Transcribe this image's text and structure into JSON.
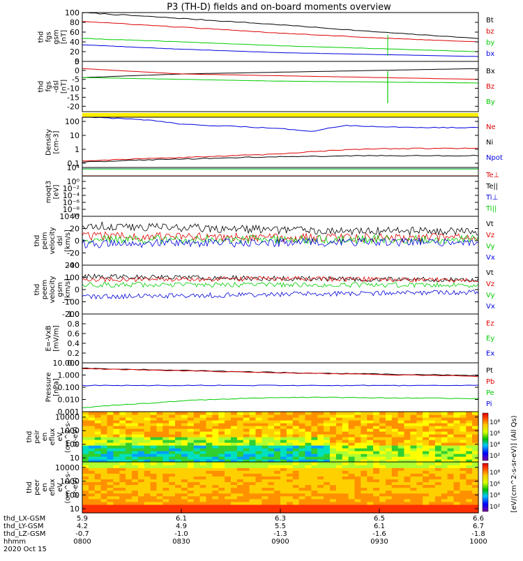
{
  "title": "P3 (TH-D) fields and on-board moments overview",
  "chart_data": {
    "type": "line",
    "title": "P3 (TH-D) fields and on-board moments overview",
    "time_range": [
      "0800",
      "1000"
    ],
    "panels": [
      {
        "id": "fgs_gsm",
        "ylabel": [
          "thd",
          "fgs",
          "gsm",
          "[nT]"
        ],
        "ylim": [
          0,
          100
        ],
        "yticks": [
          "100",
          "80",
          "60",
          "40",
          "20",
          "0"
        ],
        "tick_values": [
          100,
          80,
          60,
          40,
          20,
          0
        ],
        "scale": "linear",
        "legend": [
          {
            "name": "Bt",
            "color": "#000000"
          },
          {
            "name": "bz",
            "color": "#dd0000"
          },
          {
            "name": "by",
            "color": "#00cc00"
          },
          {
            "name": "bx",
            "color": "#0000dd"
          }
        ],
        "series": [
          {
            "name": "Bt",
            "color": "#000000",
            "x": [
              0,
              30,
              60,
              90,
              120
            ],
            "values": [
              100,
              88,
              75,
              60,
              47
            ]
          },
          {
            "name": "bz",
            "color": "#dd0000",
            "x": [
              0,
              30,
              60,
              90,
              120
            ],
            "values": [
              82,
              70,
              58,
              48,
              40
            ]
          },
          {
            "name": "by",
            "color": "#00cc00",
            "x": [
              0,
              30,
              60,
              90,
              120
            ],
            "values": [
              47,
              40,
              32,
              26,
              20
            ]
          },
          {
            "name": "bx",
            "color": "#0000dd",
            "x": [
              0,
              30,
              60,
              90,
              120
            ],
            "values": [
              34,
              25,
              18,
              14,
              10
            ]
          }
        ]
      },
      {
        "id": "fgs_dsl",
        "ylabel": [
          "thd",
          "fgs",
          "-dsl",
          "[nT]"
        ],
        "ylim": [
          -23,
          5
        ],
        "yticks": [
          "5",
          "0",
          "-5",
          "-10",
          "-15",
          "-20"
        ],
        "tick_values": [
          5,
          0,
          -5,
          -10,
          -15,
          -20
        ],
        "scale": "linear",
        "legend": [
          {
            "name": "Bx",
            "color": "#000000"
          },
          {
            "name": "Bz",
            "color": "#dd0000"
          },
          {
            "name": "By",
            "color": "#00cc00"
          }
        ],
        "series": [
          {
            "name": "Bx",
            "color": "#000000",
            "x": [
              0,
              30,
              60,
              90,
              120
            ],
            "values": [
              -4,
              -2,
              -1,
              0,
              1
            ]
          },
          {
            "name": "Bz",
            "color": "#dd0000",
            "x": [
              0,
              30,
              60,
              90,
              120
            ],
            "values": [
              1,
              -2,
              -3,
              -4,
              -5
            ]
          },
          {
            "name": "By",
            "color": "#00cc00",
            "x": [
              0,
              30,
              60,
              90,
              120
            ],
            "values": [
              -4,
              -5,
              -6,
              -6.5,
              -7
            ]
          }
        ]
      },
      {
        "id": "flag_bar",
        "ylabel": [],
        "legend": []
      },
      {
        "id": "density",
        "ylabel": [
          "Density",
          "[cm-3]"
        ],
        "ylim": [
          0.05,
          200
        ],
        "yticks": [
          "100",
          "10",
          "1",
          "0.1"
        ],
        "tick_values": [
          100,
          10,
          1,
          0.1
        ],
        "scale": "log",
        "legend": [
          {
            "name": "Ne",
            "color": "#dd0000"
          },
          {
            "name": "Ni",
            "color": "#000000"
          },
          {
            "name": "Npot",
            "color": "#0000dd"
          }
        ],
        "series": [
          {
            "name": "Npot",
            "color": "#0000dd",
            "x": [
              0,
              15,
              30,
              50,
              70,
              80,
              90,
              120
            ],
            "values": [
              200,
              150,
              60,
              40,
              20,
              50,
              40,
              35
            ]
          },
          {
            "name": "Ne",
            "color": "#dd0000",
            "x": [
              0,
              30,
              60,
              75,
              90,
              120
            ],
            "values": [
              0.15,
              0.25,
              0.45,
              0.8,
              1.1,
              1.2
            ]
          },
          {
            "name": "Ni",
            "color": "#000000",
            "x": [
              0,
              30,
              60,
              90,
              120
            ],
            "values": [
              0.12,
              0.2,
              0.3,
              0.35,
              0.35
            ]
          }
        ]
      },
      {
        "id": "moqt3",
        "ylabel": [
          "moqt3",
          "[eV]"
        ],
        "ylim": [
          1e-10,
          10000
        ],
        "yticks": [
          "10⁴",
          "10⁰",
          "10⁻²",
          "10⁻⁴",
          "10⁻⁶",
          "10⁻⁸",
          "10⁻¹⁰"
        ],
        "tick_values": [
          10000,
          1,
          0.01,
          0.0001,
          1e-06,
          1e-08,
          1e-10
        ],
        "scale": "log",
        "legend": [
          {
            "name": "Te⊥",
            "color": "#dd0000"
          },
          {
            "name": "Te||",
            "color": "#000000"
          },
          {
            "name": "Ti⊥",
            "color": "#0000dd"
          },
          {
            "name": "Ti||",
            "color": "#00cc00"
          }
        ],
        "series": [
          {
            "name": "Te⊥",
            "color": "#dd0000",
            "x": [
              0,
              120
            ],
            "values": [
              40,
              40
            ]
          },
          {
            "name": "Te||",
            "color": "#000000",
            "x": [
              0,
              120
            ],
            "values": [
              35,
              35
            ]
          },
          {
            "name": "Ti⊥",
            "color": "#0000dd",
            "x": [
              0,
              120
            ],
            "values": [
              4000,
              4000
            ]
          },
          {
            "name": "Ti||",
            "color": "#00cc00",
            "x": [
              0,
              120
            ],
            "values": [
              3500,
              3500
            ]
          }
        ]
      },
      {
        "id": "peim_velocity",
        "ylabel": [
          "thd",
          "peim",
          "velocity",
          "dsl",
          "[km/s]"
        ],
        "ylim": [
          -40,
          40
        ],
        "yticks": [
          "40",
          "20",
          "0",
          "-20",
          "-40"
        ],
        "tick_values": [
          40,
          20,
          0,
          -20,
          -40
        ],
        "scale": "linear",
        "legend": [
          {
            "name": "Vt",
            "color": "#000000"
          },
          {
            "name": "Vz",
            "color": "#dd0000"
          },
          {
            "name": "Vy",
            "color": "#00cc00"
          },
          {
            "name": "Vx",
            "color": "#0000dd"
          }
        ],
        "series": [
          {
            "name": "Vt",
            "color": "#000000",
            "x": [
              0,
              60,
              120
            ],
            "values": [
              25,
              18,
              15
            ]
          },
          {
            "name": "Vz",
            "color": "#dd0000",
            "x": [
              0,
              60,
              120
            ],
            "values": [
              8,
              5,
              5
            ]
          },
          {
            "name": "Vy",
            "color": "#00cc00",
            "x": [
              0,
              60,
              120
            ],
            "values": [
              2,
              2,
              2
            ]
          },
          {
            "name": "Vx",
            "color": "#0000dd",
            "x": [
              0,
              60,
              120
            ],
            "values": [
              -5,
              -3,
              -2
            ]
          }
        ]
      },
      {
        "id": "peem_velocity",
        "ylabel": [
          "thd",
          "peem",
          "velocity",
          "gsm",
          "[km/s]"
        ],
        "ylim": [
          -200,
          200
        ],
        "yticks": [
          "200",
          "100",
          "0",
          "-100",
          "-200"
        ],
        "tick_values": [
          200,
          100,
          0,
          -100,
          -200
        ],
        "scale": "linear",
        "legend": [
          {
            "name": "Vt",
            "color": "#000000"
          },
          {
            "name": "Vz",
            "color": "#dd0000"
          },
          {
            "name": "Vy",
            "color": "#00cc00"
          },
          {
            "name": "Vx",
            "color": "#0000dd"
          }
        ],
        "series": [
          {
            "name": "Vt",
            "color": "#000000",
            "x": [
              0,
              60,
              120
            ],
            "values": [
              110,
              90,
              80
            ]
          },
          {
            "name": "Vz",
            "color": "#dd0000",
            "x": [
              0,
              60,
              120
            ],
            "values": [
              80,
              90,
              75
            ]
          },
          {
            "name": "Vy",
            "color": "#00cc00",
            "x": [
              0,
              60,
              120
            ],
            "values": [
              40,
              40,
              35
            ]
          },
          {
            "name": "Vx",
            "color": "#0000dd",
            "x": [
              0,
              60,
              120
            ],
            "values": [
              -60,
              -40,
              -20
            ]
          }
        ]
      },
      {
        "id": "efield",
        "ylabel": [
          "E=-VxB",
          "[mV/m]"
        ],
        "ylim": [
          0,
          1
        ],
        "yticks": [
          "1.0",
          "0.8",
          "0.6",
          "0.4",
          "0.2",
          "0.0"
        ],
        "tick_values": [
          1.0,
          0.8,
          0.6,
          0.4,
          0.2,
          0.0
        ],
        "scale": "linear",
        "legend": [
          {
            "name": "Ez",
            "color": "#dd0000"
          },
          {
            "name": "Ey",
            "color": "#00cc00"
          },
          {
            "name": "Ex",
            "color": "#0000dd"
          }
        ],
        "series": []
      },
      {
        "id": "pressure",
        "ylabel": [
          "Pressure",
          "[nPa]"
        ],
        "ylim": [
          0.001,
          10
        ],
        "yticks": [
          "10.000",
          "1.000",
          "0.100",
          "0.010",
          "0.001"
        ],
        "tick_values": [
          10,
          1,
          0.1,
          0.01,
          0.001
        ],
        "scale": "log",
        "legend": [
          {
            "name": "Pt",
            "color": "#000000"
          },
          {
            "name": "Pb",
            "color": "#dd0000"
          },
          {
            "name": "Pe",
            "color": "#00cc00"
          },
          {
            "name": "Pi",
            "color": "#0000dd"
          }
        ],
        "series": [
          {
            "name": "Pt",
            "color": "#000000",
            "x": [
              0,
              30,
              60,
              90,
              120
            ],
            "values": [
              3.6,
              2.4,
              1.6,
              1.2,
              0.9
            ]
          },
          {
            "name": "Pb",
            "color": "#dd0000",
            "x": [
              0,
              30,
              60,
              90,
              120
            ],
            "values": [
              3.3,
              2.2,
              1.5,
              1.1,
              0.8
            ]
          },
          {
            "name": "Pi",
            "color": "#0000dd",
            "x": [
              0,
              120
            ],
            "values": [
              0.14,
              0.14
            ]
          },
          {
            "name": "Pe",
            "color": "#00cc00",
            "x": [
              0,
              20,
              40,
              60,
              90,
              120
            ],
            "values": [
              0.002,
              0.005,
              0.01,
              0.015,
              0.014,
              0.012
            ]
          }
        ]
      },
      {
        "id": "peir_spec",
        "type": "heatmap",
        "ylabel": [
          "thd",
          "peir",
          "en",
          "eflux",
          "eV",
          "(cm^2-s-",
          "sr-eV)"
        ],
        "ylim": [
          5,
          25000
        ],
        "yticks": [
          "10000",
          "1000",
          "100",
          "10"
        ],
        "tick_values": [
          10000,
          1000,
          100,
          10
        ],
        "scale": "log",
        "colorbar": {
          "ticks": [
            "10⁸",
            "10⁶",
            "10⁴",
            "10²"
          ],
          "range": [
            10,
            1000000000
          ]
        }
      },
      {
        "id": "peer_spec",
        "type": "heatmap",
        "ylabel": [
          "thd",
          "peer",
          "en",
          "eflux",
          "eV",
          "(cm^2-s-",
          "sr-eV)"
        ],
        "ylim": [
          5,
          25000
        ],
        "yticks": [
          "10000",
          "1000",
          "100",
          "10"
        ],
        "tick_values": [
          10000,
          1000,
          100,
          10
        ],
        "scale": "log",
        "colorbar": {
          "ticks": [
            "10⁸",
            "10⁶",
            "10⁴",
            "10²"
          ],
          "range": [
            10,
            1000000000
          ]
        }
      }
    ],
    "colorbar_label": "[eV/(cm^2-s-sr-eV)] (All Qs)",
    "xaxis": {
      "rows": [
        {
          "label": "thd_LX-GSM",
          "values": [
            "5.9",
            "6.1",
            "6.3",
            "6.5",
            "6.6"
          ]
        },
        {
          "label": "thd_LY-GSM",
          "values": [
            "4.2",
            "4.9",
            "5.5",
            "6.1",
            "6.7"
          ]
        },
        {
          "label": "thd_LZ-GSM",
          "values": [
            "-0.7",
            "-1.0",
            "-1.3",
            "-1.6",
            "-1.8"
          ]
        },
        {
          "label": "hhmm",
          "values": [
            "0800",
            "0830",
            "0900",
            "0930",
            "1000"
          ]
        }
      ],
      "date": "2020 Oct 15"
    }
  }
}
